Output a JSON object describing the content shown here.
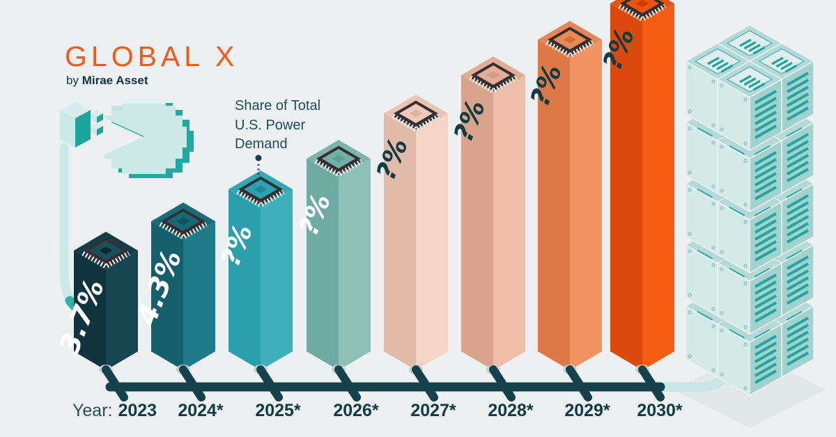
{
  "logo": {
    "brand": "GLOBAL X",
    "byline_prefix": "by",
    "byline_name": "Mirae Asset"
  },
  "palette": {
    "background": "#edf0f1",
    "dark": "#14414c",
    "logo_orange": "#f4581c",
    "cable_light": "#cde9e6",
    "cable_accent": "#2fb2aa",
    "chip_dark": "#362f32",
    "ring": "#c7d1d2",
    "server_teal": "#24a59d",
    "server_face_left": "#d3eae7",
    "server_face_right": "#a2d2ce",
    "server_face_top": "#b3dad6",
    "shadow": "#e2e8e8"
  },
  "annotation": {
    "label": "Share of Total U.S. Power Demand"
  },
  "chart_data": {
    "type": "bar",
    "title": "Share of Total U.S. Power Demand",
    "x_axis_prefix": "Year:",
    "categories": [
      "2023",
      "2024*",
      "2025*",
      "2026*",
      "2027*",
      "2028*",
      "2029*",
      "2030*"
    ],
    "value_labels": [
      "3.7%",
      "4.3%",
      "?%",
      "?%",
      "?%",
      "?%",
      "?%",
      "?%"
    ],
    "values": [
      3.7,
      4.3,
      null,
      null,
      null,
      null,
      null,
      null
    ],
    "unit": "% share of total U.S. power demand",
    "legend_position": "none",
    "grid": false,
    "bars": [
      {
        "year": "2023",
        "face_left": "#10343d",
        "face_right": "#16454f",
        "face_top": "#133d47",
        "chip": "#194f59",
        "chip_diamond": "#0b2a32",
        "label_color": "#ffffff"
      },
      {
        "year": "2024*",
        "face_left": "#135f6b",
        "face_right": "#1e7c89",
        "face_top": "#186d79",
        "chip": "#156a76",
        "chip_diamond": "#0e505b",
        "label_color": "#ffffff"
      },
      {
        "year": "2025*",
        "face_left": "#2aa0ac",
        "face_right": "#3eb0bb",
        "face_top": "#33a8b3",
        "chip": "#2aa3af",
        "chip_diamond": "#1e8994",
        "label_color": "#ffffff"
      },
      {
        "year": "2026*",
        "face_left": "#6faba3",
        "face_right": "#8dc1b8",
        "face_top": "#7db4ac",
        "chip": "#70b0a7",
        "chip_diamond": "#5ca196",
        "label_color": "#ffffff"
      },
      {
        "year": "2027*",
        "face_left": "#e2baaa",
        "face_right": "#f3d4c5",
        "face_top": "#eac4b3",
        "chip": "#eec9b9",
        "chip_diamond": "#dfb2a0",
        "label_color": "#0e3b44"
      },
      {
        "year": "2028*",
        "face_left": "#d8a28b",
        "face_right": "#eebfa6",
        "face_top": "#e2ad94",
        "chip": "#e3ae96",
        "chip_diamond": "#d29b80",
        "label_color": "#0e3b44"
      },
      {
        "year": "2029*",
        "face_left": "#de7947",
        "face_right": "#f29364",
        "face_top": "#e88554",
        "chip": "#e98955",
        "chip_diamond": "#d76e38",
        "label_color": "#0e3b44"
      },
      {
        "year": "2030*",
        "face_left": "#dc490d",
        "face_right": "#f45c12",
        "face_top": "#e85310",
        "chip": "#e95410",
        "chip_diamond": "#cf3f05",
        "label_color": "#0e3b44"
      }
    ]
  }
}
